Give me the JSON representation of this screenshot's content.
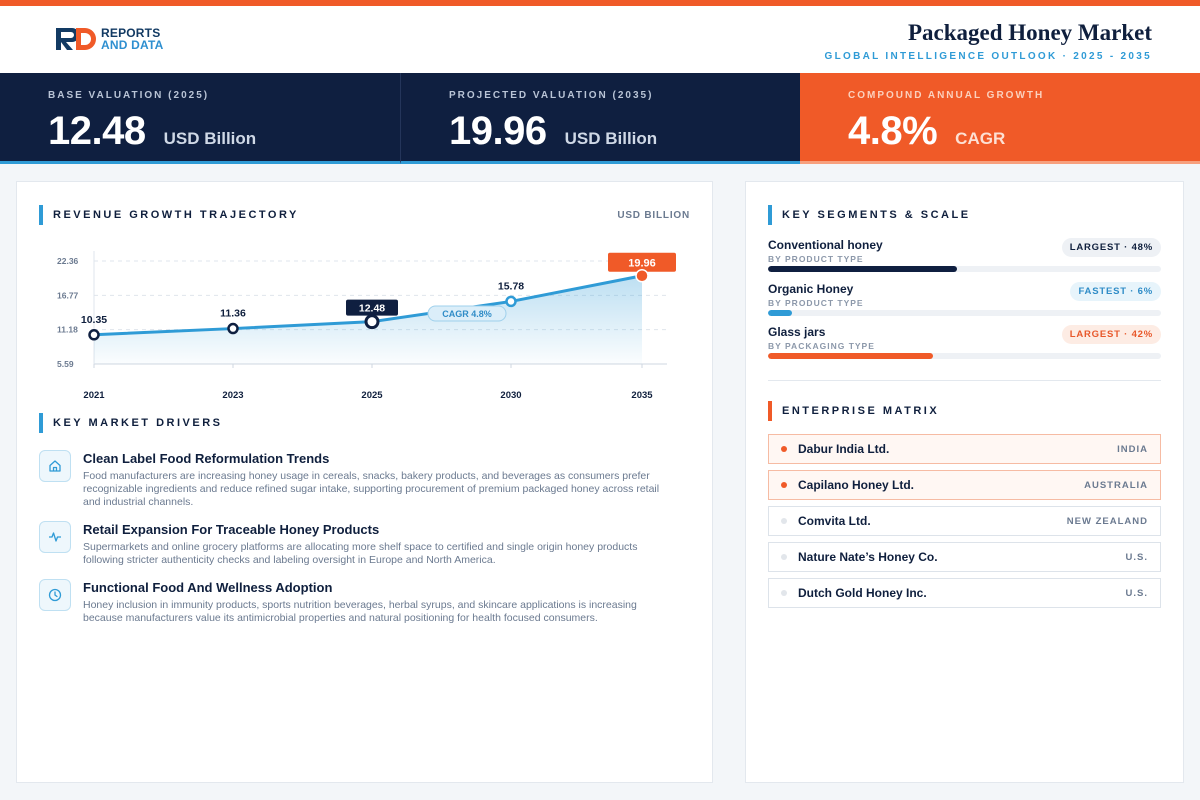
{
  "brand": {
    "line1": "REPORTS",
    "line2": "AND DATA",
    "accent": "#f05a28",
    "navy": "#0f1f40",
    "blue": "#2f9bd6"
  },
  "header": {
    "title": "Packaged Honey Market",
    "subtitle": "GLOBAL INTELLIGENCE OUTLOOK · 2025 - 2035"
  },
  "kpis": [
    {
      "label": "BASE VALUATION (2025)",
      "value": "12.48",
      "unit": "USD Billion"
    },
    {
      "label": "PROJECTED VALUATION (2035)",
      "value": "19.96",
      "unit": "USD Billion"
    },
    {
      "label": "COMPOUND ANNUAL GROWTH",
      "value": "4.8%",
      "unit": "CAGR"
    }
  ],
  "revenue": {
    "title": "REVENUE GROWTH TRAJECTORY",
    "unit": "USD BILLION",
    "cagr_badge": "CAGR 4.8%"
  },
  "chart_data": {
    "type": "area",
    "x": [
      "2021",
      "2023",
      "2025",
      "2030",
      "2035"
    ],
    "values": [
      10.35,
      11.36,
      12.48,
      15.78,
      19.96
    ],
    "value_labels": [
      "10.35",
      "11.36",
      "12.48",
      "15.78",
      "19.96"
    ],
    "y_ticks": [
      "22.36",
      "16.77",
      "11.18",
      "5.59"
    ],
    "ylim": [
      5.59,
      22.36
    ],
    "grid": true,
    "highlight": {
      "2025": "navy",
      "2035": "orange"
    }
  },
  "drivers": {
    "title": "KEY MARKET DRIVERS",
    "items": [
      {
        "icon": "home-icon",
        "title": "Clean Label Food Reformulation Trends",
        "text": "Food manufacturers are increasing honey usage in cereals, snacks, bakery products, and beverages as consumers prefer recognizable ingredients and reduce refined sugar intake, supporting procurement of premium packaged honey across retail and industrial channels."
      },
      {
        "icon": "pulse-icon",
        "title": "Retail Expansion For Traceable Honey Products",
        "text": "Supermarkets and online grocery platforms are allocating more shelf space to certified and single origin honey products following stricter authenticity checks and labeling oversight in Europe and North America."
      },
      {
        "icon": "clock-icon",
        "title": "Functional Food And Wellness Adoption",
        "text": "Honey inclusion in immunity products, sports nutrition beverages, herbal syrups, and skincare applications is increasing because manufacturers value its antimicrobial properties and natural positioning for health focused consumers."
      }
    ]
  },
  "segments": {
    "title": "KEY SEGMENTS & SCALE",
    "items": [
      {
        "name": "Conventional honey",
        "sub": "BY PRODUCT TYPE",
        "badge": "LARGEST · 48%",
        "share": 0.48,
        "color": "#0f1f40"
      },
      {
        "name": "Organic Honey",
        "sub": "BY PRODUCT TYPE",
        "badge": "FASTEST · 6%",
        "share": 0.06,
        "color": "#2f9bd6"
      },
      {
        "name": "Glass jars",
        "sub": "BY PACKAGING TYPE",
        "badge": "LARGEST · 42%",
        "share": 0.42,
        "color": "#f05a28"
      }
    ]
  },
  "enterprise": {
    "title": "ENTERPRISE MATRIX",
    "items": [
      {
        "name": "Dabur India Ltd.",
        "country": "INDIA"
      },
      {
        "name": "Capilano Honey Ltd.",
        "country": "AUSTRALIA"
      },
      {
        "name": "Comvita Ltd.",
        "country": "NEW ZEALAND"
      },
      {
        "name": "Nature Nate’s Honey Co.",
        "country": "U.S."
      },
      {
        "name": "Dutch Gold Honey Inc.",
        "country": "U.S."
      }
    ]
  }
}
